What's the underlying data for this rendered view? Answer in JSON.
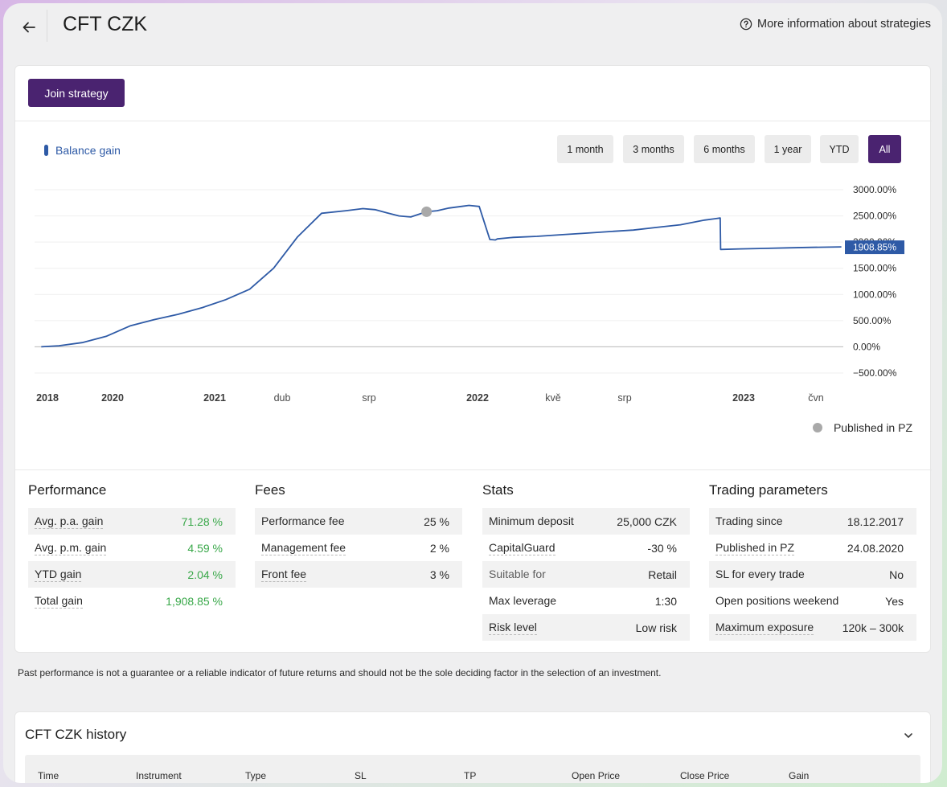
{
  "header": {
    "title": "CFT CZK",
    "more_info": "More information about strategies"
  },
  "actions": {
    "join": "Join strategy"
  },
  "chart_controls": {
    "legend": "Balance gain",
    "ranges": [
      "1 month",
      "3 months",
      "6 months",
      "1 year",
      "YTD",
      "All"
    ],
    "active_range": "All",
    "published_legend": "Published in PZ"
  },
  "chart_data": {
    "type": "line",
    "series": [
      {
        "name": "Balance gain",
        "x": [
          "2017-12-18",
          "2018-02-01",
          "2018-04-01",
          "2018-06-01",
          "2018-08-01",
          "2018-10-01",
          "2018-12-01",
          "2019-02-01",
          "2019-04-01",
          "2019-06-01",
          "2019-08-01",
          "2019-10-01",
          "2019-12-01",
          "2020-02-01",
          "2020-03-15",
          "2020-04-15",
          "2020-05-15",
          "2020-06-15",
          "2020-07-15",
          "2020-08-24",
          "2020-09-20",
          "2020-10-20",
          "2020-11-20",
          "2020-12-10",
          "2021-01-05",
          "2021-02-01",
          "2021-02-15",
          "2021-02-20",
          "2021-04-01",
          "2021-06-01",
          "2021-08-01",
          "2021-10-01",
          "2021-12-01",
          "2022-02-01",
          "2022-04-01",
          "2022-06-01",
          "2022-08-01",
          "2022-09-10",
          "2022-09-11",
          "2022-11-01",
          "2023-01-01",
          "2023-03-01",
          "2023-05-01",
          "2023-07-15"
        ],
        "values": [
          0,
          20,
          80,
          200,
          400,
          520,
          620,
          750,
          900,
          1100,
          1500,
          2100,
          2550,
          2600,
          2640,
          2620,
          2560,
          2500,
          2480,
          2580,
          2600,
          2650,
          2680,
          2700,
          2680,
          2050,
          2040,
          2060,
          2090,
          2110,
          2140,
          2170,
          2200,
          2230,
          2280,
          2330,
          2420,
          2460,
          1860,
          1870,
          1880,
          1890,
          1900,
          1908.85
        ]
      }
    ],
    "xticks": [
      "2018",
      "2020",
      "2021",
      "dub",
      "srp",
      "2022",
      "kvě",
      "srp",
      "2023",
      "čvn"
    ],
    "yticks": [
      "3000.00%",
      "2500.00%",
      "2000.00%",
      "1500.00%",
      "1000.00%",
      "500.00%",
      "0.00%",
      "−500.00%"
    ],
    "ylim": [
      -500,
      3000
    ],
    "last_value_label": "1908.85%",
    "published_marker": {
      "x": "2020-08-24",
      "value": 2580
    }
  },
  "performance": {
    "title": "Performance",
    "rows": [
      {
        "label": "Avg. p.a. gain",
        "value": "71.28 %"
      },
      {
        "label": "Avg. p.m. gain",
        "value": "4.59 %"
      },
      {
        "label": "YTD gain",
        "value": "2.04 %"
      },
      {
        "label": "Total gain",
        "value": "1,908.85 %"
      }
    ]
  },
  "fees": {
    "title": "Fees",
    "rows": [
      {
        "label": "Performance fee",
        "value": "25 %"
      },
      {
        "label": "Management fee",
        "value": "2 %"
      },
      {
        "label": "Front fee",
        "value": "3 %"
      }
    ]
  },
  "stats": {
    "title": "Stats",
    "rows": [
      {
        "label": "Minimum deposit",
        "value": "25,000 CZK"
      },
      {
        "label": "CapitalGuard",
        "value": "-30 %"
      },
      {
        "label": "Suitable for",
        "value": "Retail"
      },
      {
        "label": "Max leverage",
        "value": "1:30"
      },
      {
        "label": "Risk level",
        "value": "Low risk"
      }
    ]
  },
  "trading": {
    "title": "Trading parameters",
    "rows": [
      {
        "label": "Trading since",
        "value": "18.12.2017"
      },
      {
        "label": "Published in PZ",
        "value": "24.08.2020"
      },
      {
        "label": "SL for every trade",
        "value": "No"
      },
      {
        "label": "Open positions weekend",
        "value": "Yes"
      },
      {
        "label": "Maximum exposure",
        "value": "120k – 300k"
      }
    ]
  },
  "disclaimer": "Past performance is not a guarantee or a reliable indicator of future returns and should not be the sole deciding factor in the selection of an investment.",
  "history": {
    "title": "CFT CZK history",
    "columns": [
      "Time",
      "Instrument",
      "Type",
      "SL",
      "TP",
      "Open Price",
      "Close Price",
      "Gain"
    ]
  },
  "colors": {
    "accent": "#4a2370",
    "line": "#2e5aa6",
    "gain_green": "#3aa84a",
    "marker_gray": "#a9a9a9"
  }
}
